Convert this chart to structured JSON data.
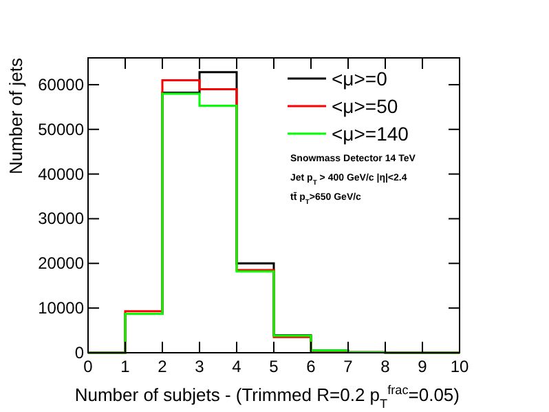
{
  "chart_data": {
    "type": "histogram",
    "xlabel": "Number of subjets - (Trimmed R=0.2 p$_{T}$$^{frac}$=0.05)",
    "ylabel": "Number of jets",
    "bins": [
      0,
      1,
      2,
      3,
      4,
      5,
      6,
      7,
      8,
      9,
      10
    ],
    "series": [
      {
        "name": "<μ>=0",
        "color": "#000000",
        "values": [
          0,
          8700,
          58200,
          62800,
          20000,
          3900,
          500,
          100,
          0,
          0
        ]
      },
      {
        "name": "<μ>=50",
        "color": "#ff0000",
        "values": [
          0,
          9300,
          61000,
          59000,
          18500,
          3500,
          400,
          100,
          0,
          0
        ]
      },
      {
        "name": "<μ>=140",
        "color": "#00ff00",
        "values": [
          0,
          8700,
          58000,
          55300,
          18200,
          3800,
          500,
          100,
          0,
          0
        ]
      }
    ],
    "xlim": [
      0,
      10
    ],
    "ylim": [
      0,
      66000
    ],
    "xticks": [
      0,
      1,
      2,
      3,
      4,
      5,
      6,
      7,
      8,
      9,
      10
    ],
    "yticks": [
      0,
      10000,
      20000,
      30000,
      40000,
      50000,
      60000
    ],
    "legend": "top right",
    "grid": false,
    "annotations": [
      "Snowmass Detector 14 TeV",
      "Jet p$_{T}$ > 400 GeV/c  |η|<2.4",
      "tt̄  p$_{T}$>650 GeV/c"
    ]
  }
}
